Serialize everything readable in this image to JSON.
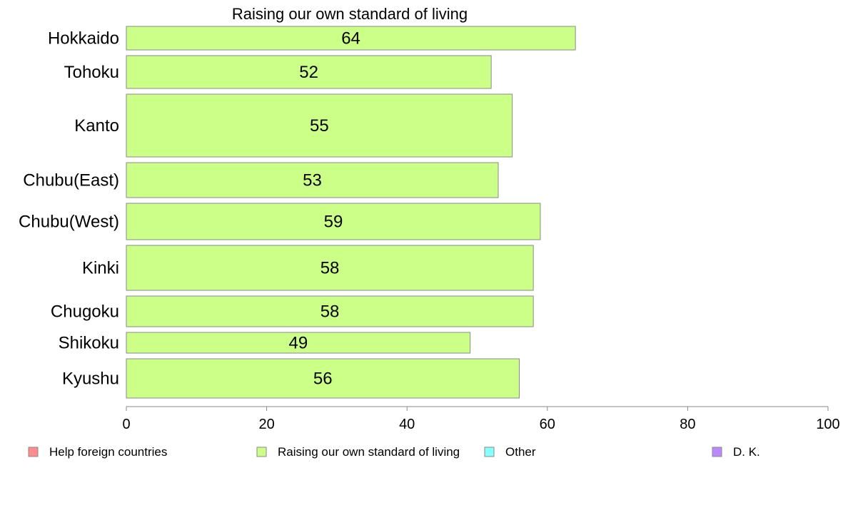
{
  "chart_data": {
    "type": "bar",
    "orientation": "horizontal",
    "title": "Raising our own standard of living",
    "categories": [
      "Hokkaido",
      "Tohoku",
      "Kanto",
      "Chubu(East)",
      "Chubu(West)",
      "Kinki",
      "Chugoku",
      "Shikoku",
      "Kyushu"
    ],
    "values": [
      64,
      52,
      55,
      53,
      59,
      58,
      58,
      49,
      56
    ],
    "xlim": [
      0,
      100
    ],
    "xticks": [
      "0",
      "20",
      "40",
      "60",
      "80",
      "100"
    ],
    "bar_color": "#ccff88",
    "grid": false,
    "legend": {
      "placement": "bottom",
      "items": [
        {
          "label": "Help foreign countries",
          "color": "#ff8c8c"
        },
        {
          "label": "Raising our own standard of living",
          "color": "#ccff88"
        },
        {
          "label": "Other",
          "color": "#88ffff"
        },
        {
          "label": "D. K.",
          "color": "#bb88ff"
        }
      ]
    }
  }
}
